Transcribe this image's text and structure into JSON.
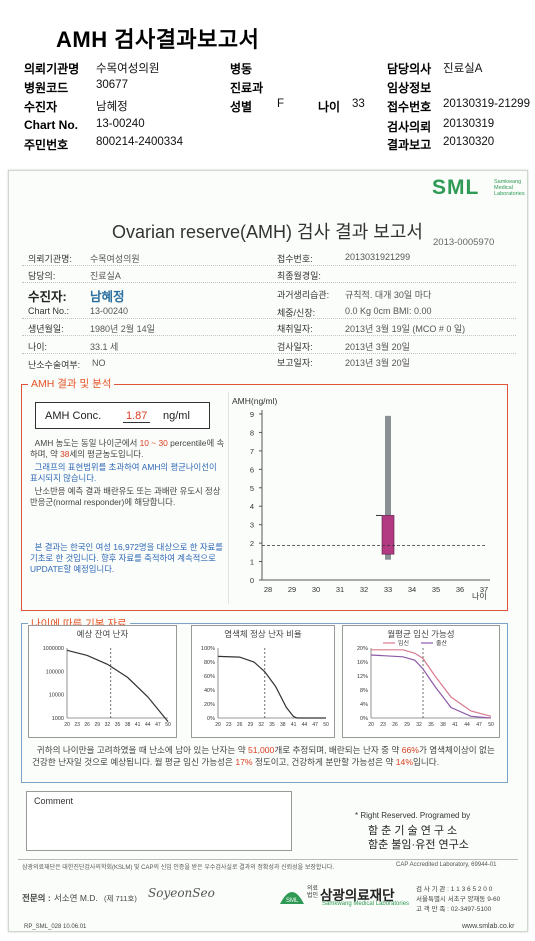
{
  "header": {
    "title": "AMH 검사결과보고서",
    "rows": [
      [
        {
          "label": "의뢰기관명",
          "value": "수목여성의원"
        },
        {
          "label": "병동",
          "value": ""
        },
        {
          "label": "담당의사",
          "value": "진료실A"
        }
      ],
      [
        {
          "label": "병원코드",
          "value": "30677"
        },
        {
          "label": "진료과",
          "value": ""
        },
        {
          "label": "임상정보",
          "value": ""
        }
      ],
      [
        {
          "label": "수진자",
          "value": "남혜정"
        },
        {
          "label": "성별",
          "value": "F"
        },
        {
          "label": "나이",
          "value": "33"
        },
        {
          "label": "접수번호",
          "value": "20130319-21299"
        }
      ],
      [
        {
          "label": "Chart No.",
          "value": "13-00240"
        },
        {
          "label": "검사의뢰",
          "value": "20130319"
        }
      ],
      [
        {
          "label": "주민번호",
          "value": "800214-2400334"
        },
        {
          "label": "결과보고",
          "value": "20130320"
        }
      ]
    ]
  },
  "report": {
    "logo": "SML",
    "logo_sub_1": "Samkwang",
    "logo_sub_2": "Medical",
    "logo_sub_3": "Laboratories",
    "title": "Ovarian reserve(AMH) 검사 결과 보고서",
    "report_id": "2013-0005970",
    "patient_left": [
      {
        "label": "의뢰기관명:",
        "value": "수목여성의원"
      },
      {
        "label": "담당의:",
        "value": "진료실A"
      },
      {
        "label": "수진자:",
        "value": "남혜정"
      },
      {
        "label": "Chart No.:",
        "value": "13-00240"
      },
      {
        "label": "생년월일:",
        "value": "1980년 2월 14일"
      },
      {
        "label": "나이:",
        "value": "33.1 세"
      },
      {
        "label": "난소수술여부:",
        "value": "NO"
      }
    ],
    "patient_right": [
      {
        "label": "접수번호:",
        "value": "2013031921299"
      },
      {
        "label": "최종월경일:",
        "value": ""
      },
      {
        "label": "과거생리습관:",
        "value": "규칙적. 대개  30일 마다"
      },
      {
        "label": "체중/신장:",
        "value": "0.0 Kg       0cm      BMI:   0.00"
      },
      {
        "label": "채취일자:",
        "value": "2013년 3월 19일   (MCO # 0 일)"
      },
      {
        "label": "검사일자:",
        "value": "2013년 3월 20일"
      },
      {
        "label": "보고일자:",
        "value": "2013년 3월 20일"
      }
    ],
    "amh_section_title": "AMH 결과 및 분석",
    "amh_conc_label": "AMH Conc.",
    "amh_conc_value": "1.87",
    "amh_conc_unit": "ng/ml",
    "analysis_p1_a": "AMH 농도는 동일 나이군에서",
    "analysis_p1_range": "10 ~ 30",
    "analysis_p1_b": "percentile에 속하며, 약",
    "analysis_p1_age": "38",
    "analysis_p1_c": "세의 평균농도입니다.",
    "analysis_p2": "그래프의 표현범위를 초과하여 AMH의 평균나이선이 표시되지 않습니다.",
    "analysis_p3": "난소반응 예측 결과 배란유도 또는 과배란 유도시 정상반응군(normal responder)에 해당합니다.",
    "analysis_p4": "본 결과는 한국인 여성 16,972명을 대상으로 한 자료를 기초로 한 것입니다. 향후 자료를 축적하여 계속적으로 UPDATE할 예정입니다.",
    "basic_section_title": "나이에 따른 기본 자료",
    "summary_a": "귀하의 나이만을 고려하였을 때 난소에 남아 있는 난자는 약",
    "summary_eggs": "51,000",
    "summary_b": "개로 추정되며, 배란되는 난자 중 약",
    "summary_normal": "66%",
    "summary_c": "가 염색체이상이 없는 건강한 난자일 것으로 예상됩니다. 월 평균 임신 가능성은",
    "summary_preg": "17%",
    "summary_d": "정도이고, 건강하게 분만할 가능성은 약",
    "summary_birth": "14%",
    "summary_e": "입니다.",
    "comment_label": "Comment",
    "rights_line": "* Right Reserved. Programed by",
    "rights_org1": "함 춘  기 술  연 구 소",
    "rights_org2": "함춘 불임·유전 연구소",
    "cert_line": "삼광의료재단은 대한진단검사의학회(KSLM) 및 CAP의 신임 인증을 받은 우수검사실로 결과의 정확성과 신뢰성을 보장합니다.",
    "cap_line": "CAP  Accredited  Laboratory,  69944-01",
    "doctor_label": "전문의 :",
    "doctor_name": "서소연 M.D.",
    "doctor_no": "(제 711호)",
    "doctor_sign": "SoyeonSeo",
    "foundation_tag": "의료 법인",
    "foundation_name": "삼광의료재단",
    "foundation_en": "Samkwang Medical Laboratories",
    "org_line1": "검 사 기 관 : 1 1 3 6 5 2 0 0",
    "org_line2": "서울특별시 서초구 양재동 9-60",
    "org_line3": "고 객 만 족 : 02-3497-5100",
    "form_code": "RP_SML_028  10.06.01",
    "website": "www.smlab.co.kr"
  },
  "chart_data": [
    {
      "type": "bar",
      "title": "AMH(ng/ml)",
      "xlabel": "나이",
      "ylabel": "AMH(ng/ml)",
      "xlim": [
        28,
        37
      ],
      "ylim": [
        0,
        9
      ],
      "x_ticks": [
        28,
        29,
        30,
        31,
        32,
        33,
        34,
        35,
        36,
        37
      ],
      "y_ticks": [
        0,
        1,
        2,
        3,
        4,
        5,
        6,
        7,
        8,
        9
      ],
      "grid": false,
      "age_line_x": 33,
      "patient_value_line_y": 1.87,
      "range_bar": {
        "x": 33,
        "low": 1.1,
        "high": 8.9
      },
      "percentile_box": {
        "x": 33,
        "low": 1.4,
        "high": 3.5
      }
    },
    {
      "type": "line",
      "title": "예상 잔여 난자",
      "x_ticks": [
        20,
        23,
        26,
        29,
        32,
        35,
        38,
        41,
        44,
        47,
        50
      ],
      "y_ticks": [
        "1000000",
        "100000",
        "10000",
        "1000"
      ],
      "y_scale": "log",
      "age_line_x": 33,
      "series": [
        {
          "x": [
            20,
            26,
            32,
            38,
            44,
            50
          ],
          "y": [
            800000,
            480000,
            200000,
            55000,
            8000,
            700
          ]
        }
      ]
    },
    {
      "type": "line",
      "title": "염색체 정상 난자 비율",
      "x_ticks": [
        20,
        23,
        26,
        29,
        32,
        35,
        38,
        41,
        44,
        47,
        50
      ],
      "y_ticks": [
        "100%",
        "80%",
        "60%",
        "40%",
        "20%",
        "0%"
      ],
      "age_line_x": 33,
      "series": [
        {
          "x": [
            20,
            26,
            30,
            33,
            36,
            39,
            41,
            42,
            50
          ],
          "y": [
            88,
            87,
            80,
            66,
            45,
            15,
            2,
            0,
            0
          ]
        }
      ]
    },
    {
      "type": "line",
      "title": "월평균 임신 가능성",
      "x_ticks": [
        20,
        23,
        26,
        29,
        32,
        35,
        38,
        41,
        44,
        47,
        50
      ],
      "y_ticks": [
        "20%",
        "16%",
        "12%",
        "8%",
        "4%",
        "0%"
      ],
      "legend": [
        "임신",
        "출산"
      ],
      "age_line_x": 33,
      "series": [
        {
          "name": "임신",
          "x": [
            20,
            28,
            31,
            33,
            36,
            40,
            45,
            50
          ],
          "y": [
            19.5,
            19.5,
            18.5,
            17,
            12,
            6,
            2,
            0.5
          ]
        },
        {
          "name": "출산",
          "x": [
            20,
            28,
            31,
            33,
            36,
            40,
            45,
            50
          ],
          "y": [
            18,
            17.5,
            16.5,
            14,
            9,
            3,
            0.5,
            0
          ]
        }
      ],
      "colors": {
        "임신": "#d97a8e",
        "출산": "#8e5aa8"
      }
    }
  ]
}
